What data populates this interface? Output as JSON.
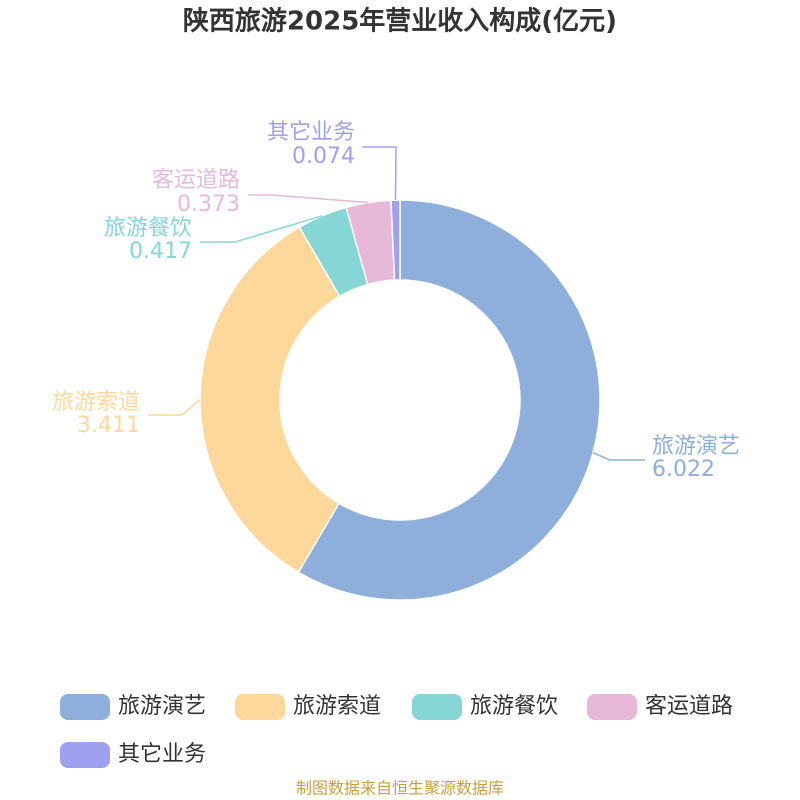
{
  "chart_data": {
    "type": "donut",
    "title": "陕西旅游2025年营业收入构成(亿元)",
    "categories": [
      "旅游演艺",
      "旅游索道",
      "旅游餐饮",
      "客运道路",
      "其它业务"
    ],
    "values": [
      6.022,
      3.411,
      0.417,
      0.373,
      0.074
    ],
    "colors": [
      "#8eaedb",
      "#fdd89a",
      "#86d6d6",
      "#e8b8d8",
      "#a0a0f0"
    ],
    "source": "制图数据来自恒生聚源数据库"
  }
}
